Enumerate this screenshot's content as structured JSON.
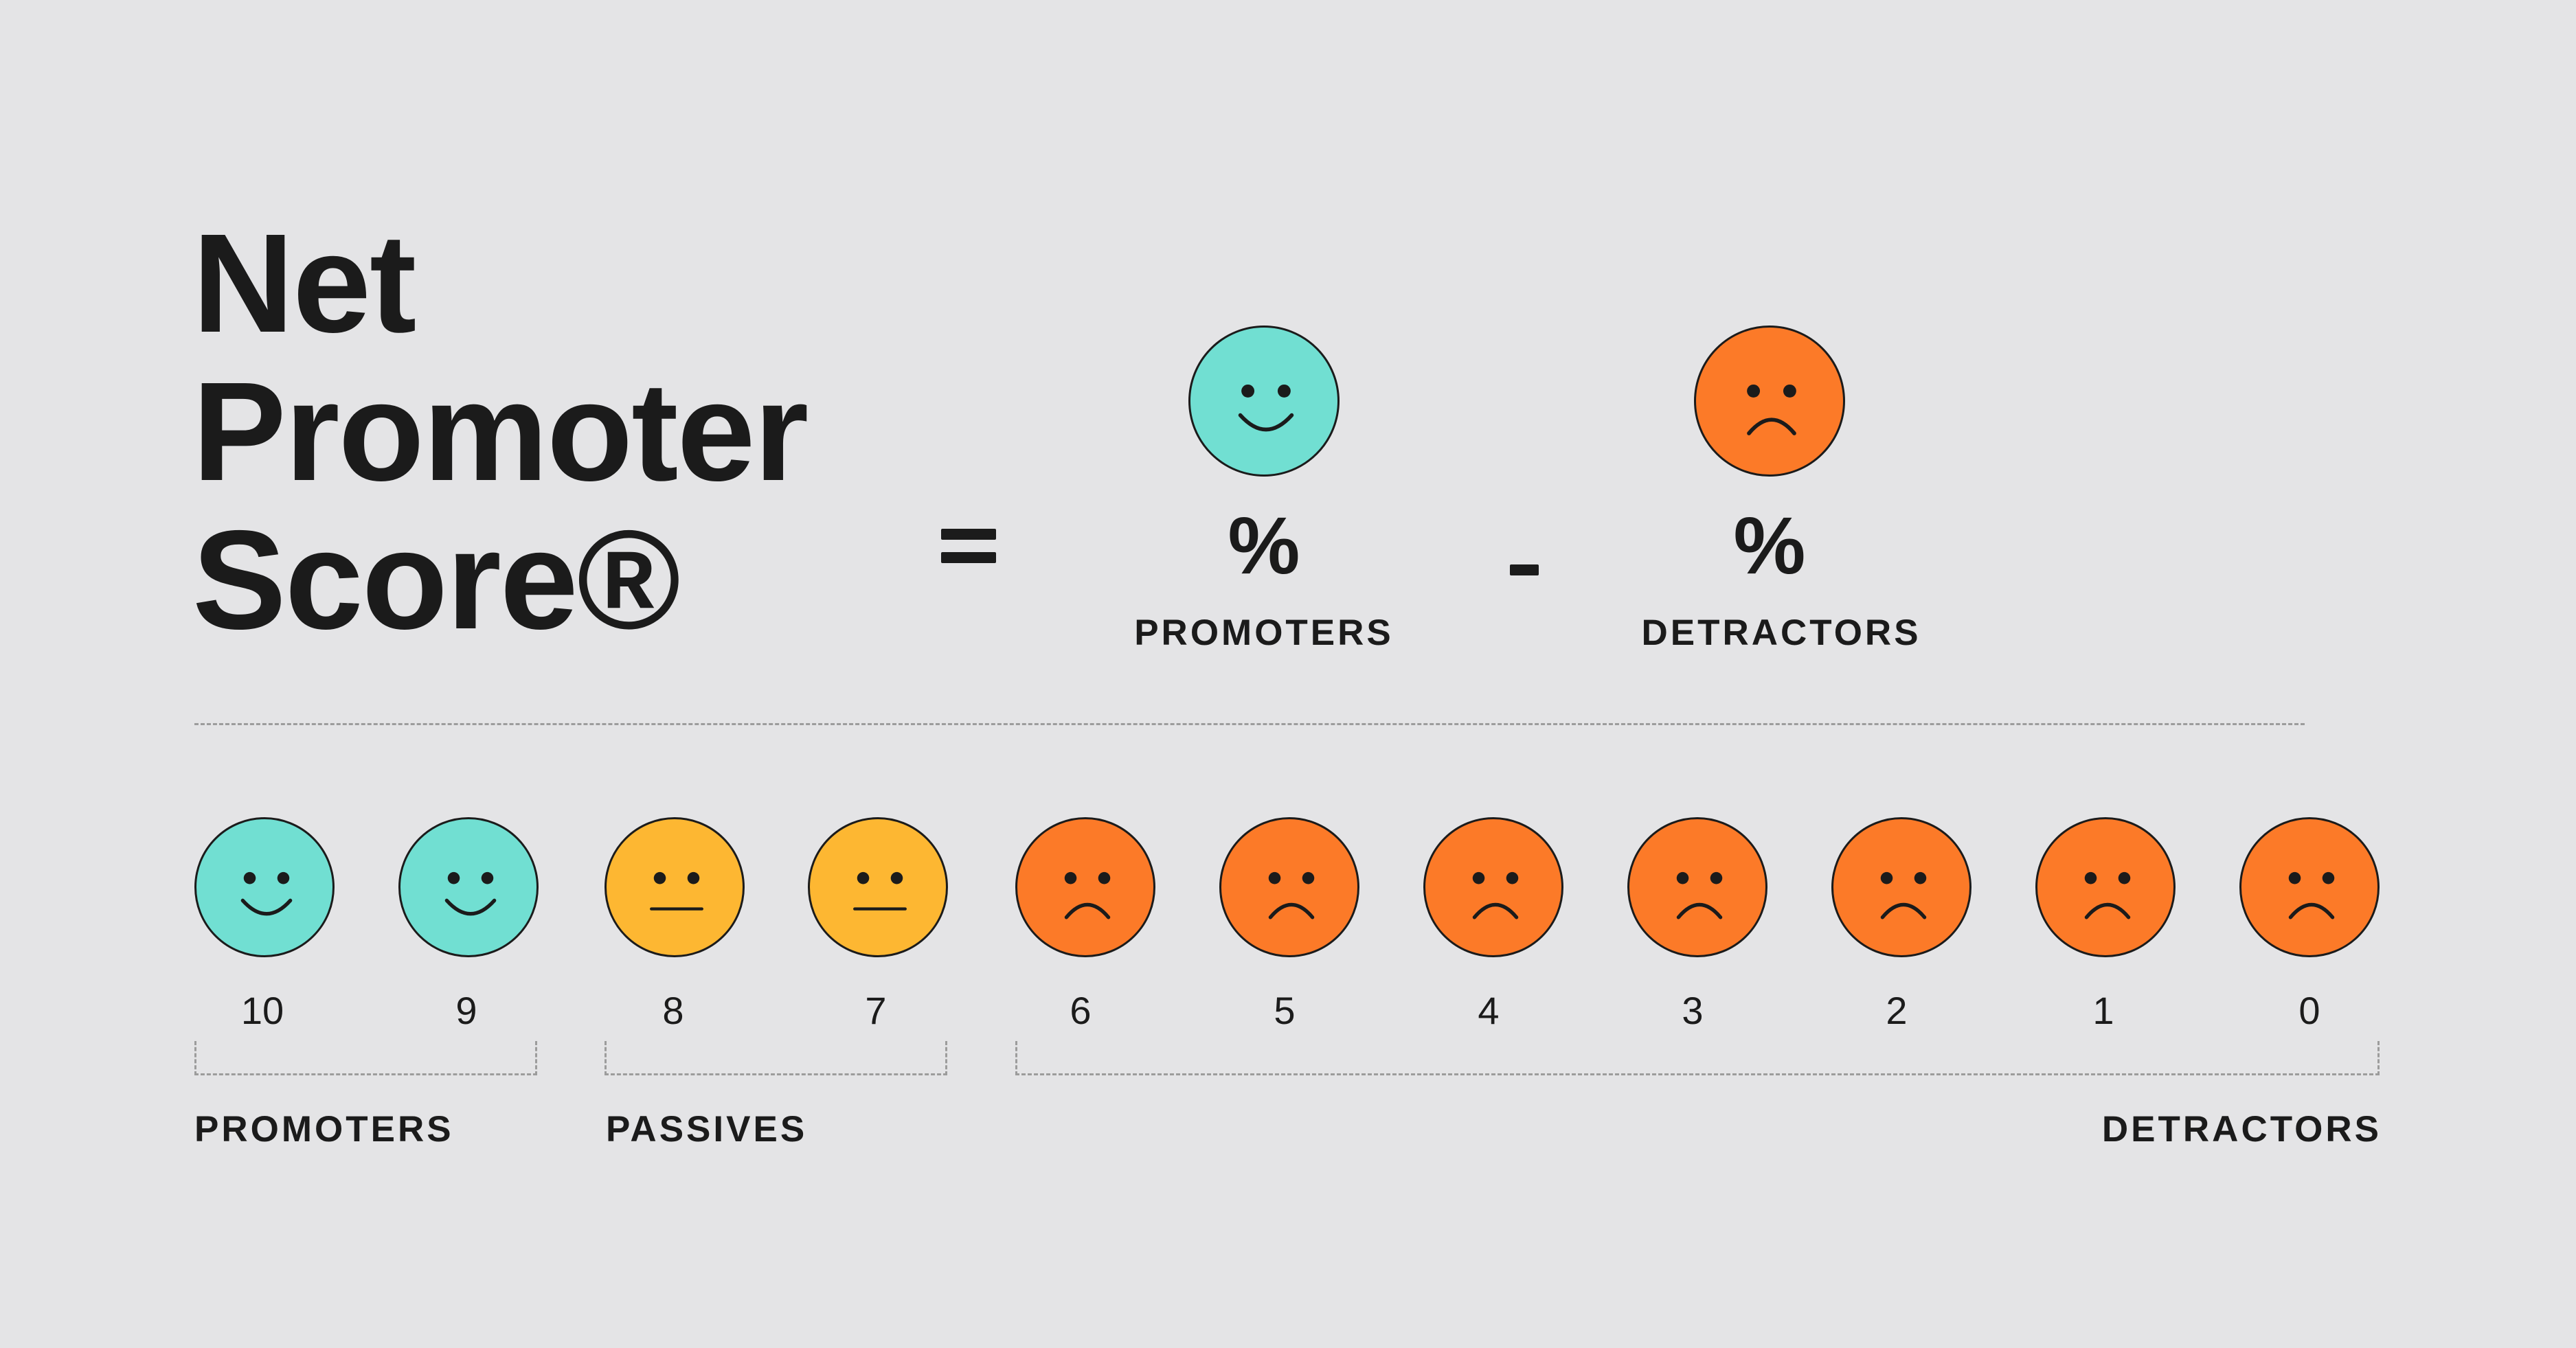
{
  "title": {
    "line1": "Net",
    "line2": "Promoter",
    "line3": "Score®"
  },
  "formula": {
    "promoters_symbol": "%",
    "promoters_label": "PROMOTERS",
    "detractors_symbol": "%",
    "detractors_label": "DETRACTORS"
  },
  "scale": {
    "scores": [
      "10",
      "9",
      "8",
      "7",
      "6",
      "5",
      "4",
      "3",
      "2",
      "1",
      "0"
    ],
    "groups": {
      "promoters": "PROMOTERS",
      "passives": "PASSIVES",
      "detractors": "DETRACTORS"
    }
  },
  "colors": {
    "background": "#e4e4e6",
    "promoter": "#71dfd2",
    "passive": "#fdb732",
    "detractor": "#fc7a28",
    "ink": "#1b1b1b"
  },
  "icons": {
    "promoter": "happy-face-icon",
    "passive": "neutral-face-icon",
    "detractor": "sad-face-icon"
  }
}
